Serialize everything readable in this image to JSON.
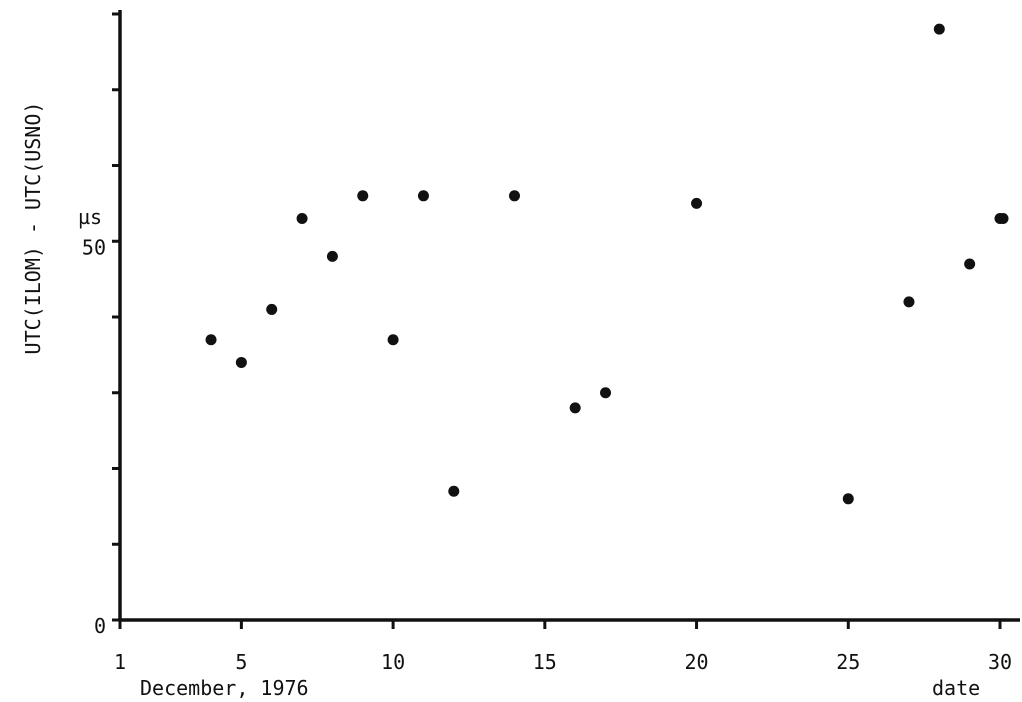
{
  "chart_data": {
    "type": "scatter",
    "title": "",
    "xlabel": "December, 1976",
    "xlabel_right": "date",
    "ylabel": "UTC(ILOM) - UTC(USNO)",
    "yunit": "µs",
    "xlim": [
      1,
      31
    ],
    "ylim": [
      0,
      80
    ],
    "x_ticks": [
      1,
      5,
      10,
      15,
      20,
      25,
      30
    ],
    "x_tick_labels": [
      "1",
      "5",
      "10",
      "15",
      "20",
      "25",
      "30"
    ],
    "y_ticks": [
      0,
      10,
      20,
      30,
      40,
      50,
      60,
      70,
      80
    ],
    "y_tick_labels": [
      "0",
      "",
      "",
      "",
      "",
      "50",
      "",
      "",
      ""
    ],
    "grid": false,
    "series": [
      {
        "points": [
          {
            "x": 4,
            "y": 37
          },
          {
            "x": 5,
            "y": 34
          },
          {
            "x": 6,
            "y": 41
          },
          {
            "x": 7,
            "y": 53
          },
          {
            "x": 8,
            "y": 48
          },
          {
            "x": 9,
            "y": 56
          },
          {
            "x": 10,
            "y": 37
          },
          {
            "x": 11,
            "y": 56
          },
          {
            "x": 12,
            "y": 17
          },
          {
            "x": 14,
            "y": 56
          },
          {
            "x": 16,
            "y": 28
          },
          {
            "x": 17,
            "y": 30
          },
          {
            "x": 20,
            "y": 55
          },
          {
            "x": 25,
            "y": 16
          },
          {
            "x": 27,
            "y": 42
          },
          {
            "x": 28,
            "y": 78
          },
          {
            "x": 29,
            "y": 47
          },
          {
            "x": 30,
            "y": 53
          },
          {
            "x": 30.1,
            "y": 53
          }
        ]
      }
    ]
  }
}
